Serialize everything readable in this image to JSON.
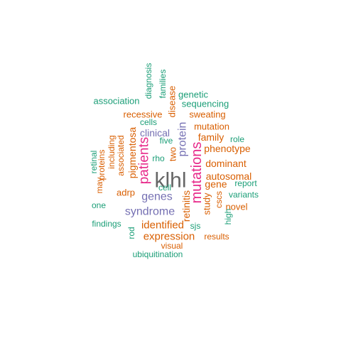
{
  "palette": {
    "green": "#1b9e77",
    "orange": "#d95f02",
    "purple": "#7570b3",
    "magenta": "#e7298a",
    "gray": "#666666"
  },
  "words": [
    {
      "text": "klhl",
      "color": "gray"
    },
    {
      "text": "mutations",
      "color": "magenta"
    },
    {
      "text": "patients",
      "color": "magenta"
    },
    {
      "text": "syndrome",
      "color": "purple"
    },
    {
      "text": "genes",
      "color": "purple"
    },
    {
      "text": "protein",
      "color": "purple"
    },
    {
      "text": "clinical",
      "color": "purple"
    },
    {
      "text": "pigmentosa",
      "color": "orange"
    },
    {
      "text": "identified",
      "color": "orange"
    },
    {
      "text": "expression",
      "color": "orange"
    },
    {
      "text": "autosomal",
      "color": "orange"
    },
    {
      "text": "gene",
      "color": "orange"
    },
    {
      "text": "dominant",
      "color": "orange"
    },
    {
      "text": "phenotype",
      "color": "orange"
    },
    {
      "text": "family",
      "color": "orange"
    },
    {
      "text": "mutation",
      "color": "orange"
    },
    {
      "text": "sweating",
      "color": "orange"
    },
    {
      "text": "recessive",
      "color": "orange"
    },
    {
      "text": "retinitis",
      "color": "orange"
    },
    {
      "text": "study",
      "color": "orange"
    },
    {
      "text": "two",
      "color": "orange"
    },
    {
      "text": "associated",
      "color": "orange"
    },
    {
      "text": "adrp",
      "color": "orange"
    },
    {
      "text": "disease",
      "color": "orange"
    },
    {
      "text": "including",
      "color": "orange"
    },
    {
      "text": "proteins",
      "color": "orange"
    },
    {
      "text": "may",
      "color": "orange"
    },
    {
      "text": "cscs",
      "color": "orange"
    },
    {
      "text": "results",
      "color": "orange"
    },
    {
      "text": "visual",
      "color": "orange"
    },
    {
      "text": "novel",
      "color": "orange"
    },
    {
      "text": "sequencing",
      "color": "green"
    },
    {
      "text": "genetic",
      "color": "green"
    },
    {
      "text": "association",
      "color": "green"
    },
    {
      "text": "diagnosis",
      "color": "green"
    },
    {
      "text": "families",
      "color": "green"
    },
    {
      "text": "cells",
      "color": "green"
    },
    {
      "text": "five",
      "color": "green"
    },
    {
      "text": "rho",
      "color": "green"
    },
    {
      "text": "role",
      "color": "green"
    },
    {
      "text": "retinal",
      "color": "green"
    },
    {
      "text": "cell",
      "color": "green"
    },
    {
      "text": "report",
      "color": "green"
    },
    {
      "text": "variants",
      "color": "green"
    },
    {
      "text": "one",
      "color": "green"
    },
    {
      "text": "findings",
      "color": "green"
    },
    {
      "text": "rod",
      "color": "green"
    },
    {
      "text": "sjs",
      "color": "green"
    },
    {
      "text": "high",
      "color": "green"
    },
    {
      "text": "ubiquitination",
      "color": "green"
    }
  ]
}
